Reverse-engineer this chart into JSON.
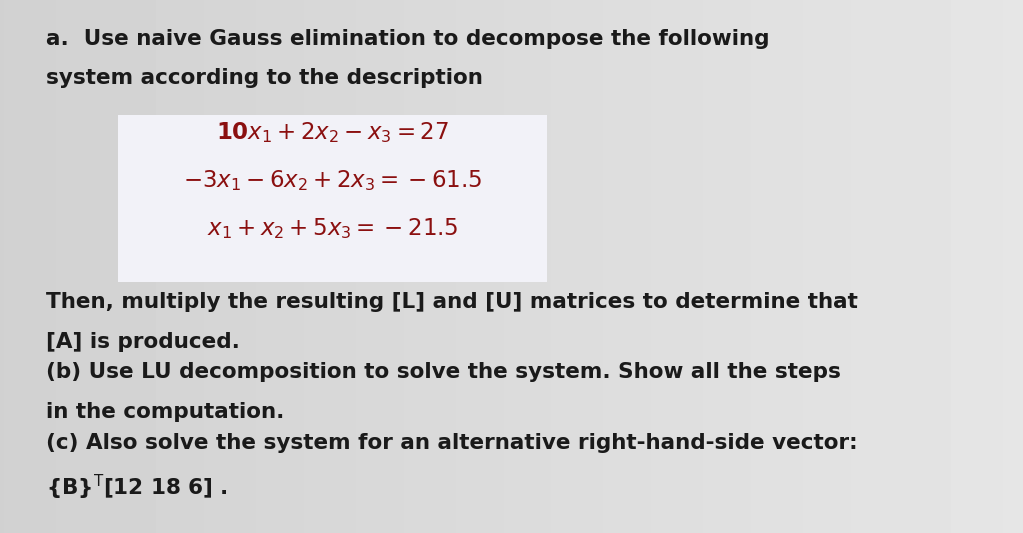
{
  "bg_color_top": "#c8c8c8",
  "bg_color_bottom": "#d8d8d8",
  "box_bg_color": "#f0f0f5",
  "text_color": "#1a1a1a",
  "eq_color": "#8B1010",
  "fig_width": 10.23,
  "fig_height": 5.33,
  "dpi": 100,
  "part_a_line1": "a.  Use naive Gauss elimination to decompose the following",
  "part_a_line2": "system according to the description",
  "eq1": "$\\mathbf{10}x_1 + 2x_2 - x_3 = 27$",
  "eq2": "$\\mathbf{-3}x_1 - 6x_2 + 2x_3 = -61.5$",
  "eq3": "$x_1 + x_2 + 5x_3 = -21.5$",
  "then_line1": "Then, multiply the resulting [L] and [U] matrices to determine that",
  "then_line2": "[A] is produced.",
  "part_b1": "(b) Use LU decomposition to solve the system. Show all the steps",
  "part_b2": "in the computation.",
  "part_c1": "(c) Also solve the system for an alternative right-hand-side vector:",
  "part_c2": "{B}$^\\mathsf{T}$[12 18 6] ."
}
